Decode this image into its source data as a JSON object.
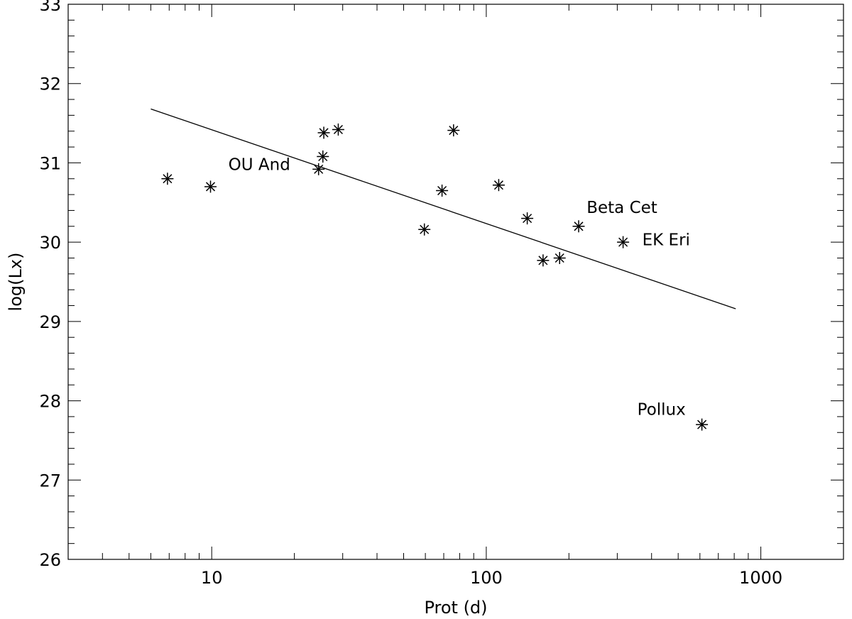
{
  "chart_data": {
    "type": "scatter",
    "title": "",
    "xlabel": "Prot (d)",
    "ylabel": "log(Lx)",
    "xscale": "log",
    "xlim": [
      3,
      2000
    ],
    "ylim": [
      26,
      33
    ],
    "x_major_ticks": [
      10,
      100,
      1000
    ],
    "x_tick_labels": [
      "10",
      "100",
      "1000"
    ],
    "y_ticks": [
      26,
      27,
      28,
      29,
      30,
      31,
      32,
      33
    ],
    "y_tick_labels": [
      "26",
      "27",
      "28",
      "29",
      "30",
      "31",
      "32",
      "33"
    ],
    "grid": false,
    "legend": "none",
    "marker": "asterisk",
    "color": "#000000",
    "series": [
      {
        "points": [
          {
            "x": 6.9,
            "y": 30.8
          },
          {
            "x": 9.9,
            "y": 30.7
          },
          {
            "x": 24.5,
            "y": 30.92
          },
          {
            "x": 25.4,
            "y": 31.08
          },
          {
            "x": 25.6,
            "y": 31.38
          },
          {
            "x": 28.9,
            "y": 31.42
          },
          {
            "x": 59.5,
            "y": 30.16
          },
          {
            "x": 69,
            "y": 30.65
          },
          {
            "x": 76,
            "y": 31.41
          },
          {
            "x": 111,
            "y": 30.72
          },
          {
            "x": 141,
            "y": 30.3
          },
          {
            "x": 161,
            "y": 29.77
          },
          {
            "x": 185,
            "y": 29.8
          },
          {
            "x": 217,
            "y": 30.2
          },
          {
            "x": 315,
            "y": 30.0
          },
          {
            "x": 610,
            "y": 27.7
          }
        ]
      }
    ],
    "fit_line": {
      "x": [
        6,
        810
      ],
      "y": [
        31.68,
        29.16
      ]
    },
    "annotations": [
      {
        "text": "OU And",
        "x": 11.5,
        "y": 30.91
      },
      {
        "text": "Beta Cet",
        "x": 232,
        "y": 30.37
      },
      {
        "text": "EK Eri",
        "x": 370,
        "y": 29.96
      },
      {
        "text": "Pollux",
        "x": 355,
        "y": 27.82
      }
    ]
  }
}
